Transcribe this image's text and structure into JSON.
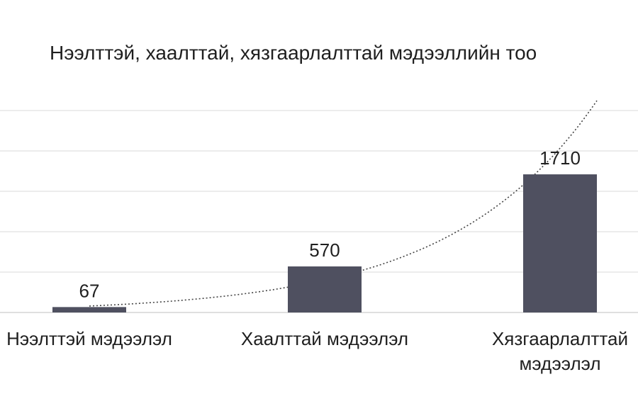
{
  "chart_data": {
    "type": "bar",
    "title": "Нээлттэй, хаалттай, хязгаарлалттай мэдээллийн тоо",
    "xlabel": "",
    "ylabel": "",
    "categories": [
      [
        "Нээлттэй мэдээлэл"
      ],
      [
        "Хаалттай мэдээлэл"
      ],
      [
        "Хязгаарлалттай",
        "мэдээлэл"
      ]
    ],
    "values": [
      67,
      570,
      1710
    ],
    "data_labels": [
      "67",
      "570",
      "1710"
    ],
    "ylim": [
      0,
      2500
    ],
    "grid": true,
    "legend": "none",
    "trendline": "exponential",
    "colors": {
      "bar": "#4f5060",
      "gridline": "#d9d9d9",
      "axis": "#bfbfbf",
      "trendline": "#444444",
      "text": "#1f1f1f"
    }
  }
}
